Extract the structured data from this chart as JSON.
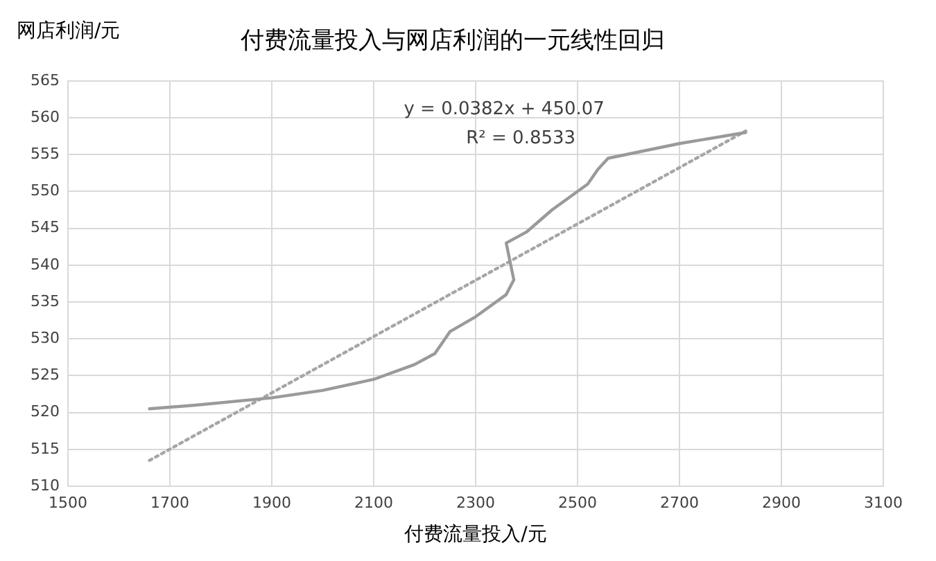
{
  "chart_data": {
    "type": "line",
    "title": "付费流量投入与网店利润的一元线性回归",
    "xlabel": "付费流量投入/元",
    "ylabel": "网店利润/元",
    "series": [
      {
        "color": "#9a9a9a",
        "line_style": "solid",
        "x": [
          1660,
          1750,
          1900,
          2000,
          2100,
          2180,
          2220,
          2250,
          2300,
          2360,
          2375,
          2360,
          2400,
          2450,
          2520,
          2540,
          2560,
          2700,
          2830
        ],
        "values": [
          520.5,
          521,
          522,
          523,
          524.5,
          526.5,
          528,
          531,
          533,
          536,
          538,
          543,
          544.5,
          547.5,
          551,
          553,
          554.5,
          556.5,
          558
        ]
      },
      {
        "color": "#a6a6a6",
        "line_style": "dotted",
        "x": [
          1660,
          2830
        ],
        "values": [
          513.5,
          558.2
        ]
      }
    ],
    "annotations": [
      "y = 0.0382x + 450.07",
      "R² = 0.8533"
    ],
    "xlim": [
      1500,
      3100
    ],
    "xticks": [
      1500,
      1700,
      1900,
      2100,
      2300,
      2500,
      2700,
      2900,
      3100
    ],
    "ylim": [
      510,
      565
    ],
    "yticks": [
      510,
      515,
      520,
      525,
      530,
      535,
      540,
      545,
      550,
      555,
      560,
      565
    ],
    "grid": true,
    "legend": false,
    "marker": "none"
  }
}
